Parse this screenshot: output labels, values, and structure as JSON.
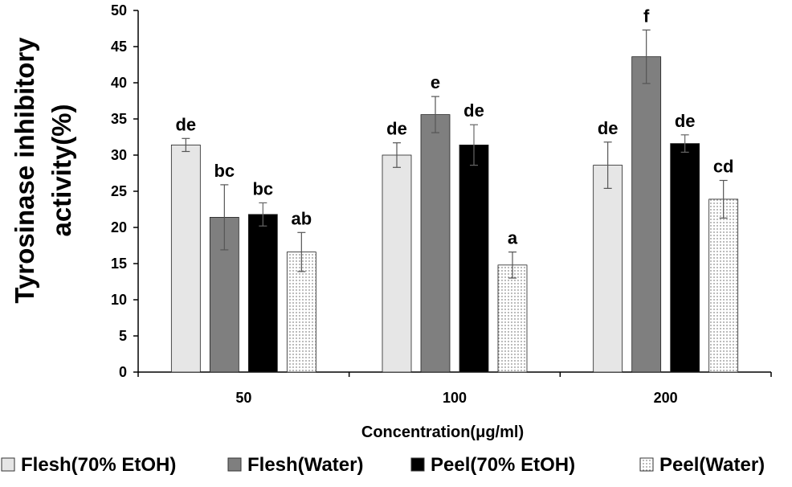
{
  "chart_data": {
    "type": "bar",
    "title": "",
    "xlabel": "Concentration(μg/ml)",
    "ylabel_lines": [
      "Tyrosinase inhibitory",
      "activity(%)"
    ],
    "ylim": [
      0,
      50
    ],
    "yticks": [
      0,
      5,
      10,
      15,
      20,
      25,
      30,
      35,
      40,
      45,
      50
    ],
    "categories": [
      "50",
      "100",
      "200"
    ],
    "grid": false,
    "legend_position": "bottom",
    "series": [
      {
        "name": "Flesh(70% EtOH)",
        "fill": "#e6e6e6",
        "pattern": "solid",
        "values": [
          31.4,
          30.0,
          28.6
        ],
        "errors": [
          0.9,
          1.7,
          3.2
        ],
        "labels": [
          "de",
          "de",
          "de"
        ]
      },
      {
        "name": "Flesh(Water)",
        "fill": "#7f7f7f",
        "pattern": "solid",
        "values": [
          21.4,
          35.6,
          43.6
        ],
        "errors": [
          4.5,
          2.5,
          3.7
        ],
        "labels": [
          "bc",
          "e",
          "f"
        ]
      },
      {
        "name": "Peel(70% EtOH)",
        "fill": "#000000",
        "pattern": "solid",
        "values": [
          21.8,
          31.4,
          31.6
        ],
        "errors": [
          1.6,
          2.8,
          1.2
        ],
        "labels": [
          "bc",
          "de",
          "de"
        ]
      },
      {
        "name": "Peel(Water)",
        "fill": "#ffffff",
        "pattern": "dots",
        "values": [
          16.6,
          14.8,
          23.9
        ],
        "errors": [
          2.7,
          1.8,
          2.6
        ],
        "labels": [
          "ab",
          "a",
          "cd"
        ]
      }
    ]
  }
}
